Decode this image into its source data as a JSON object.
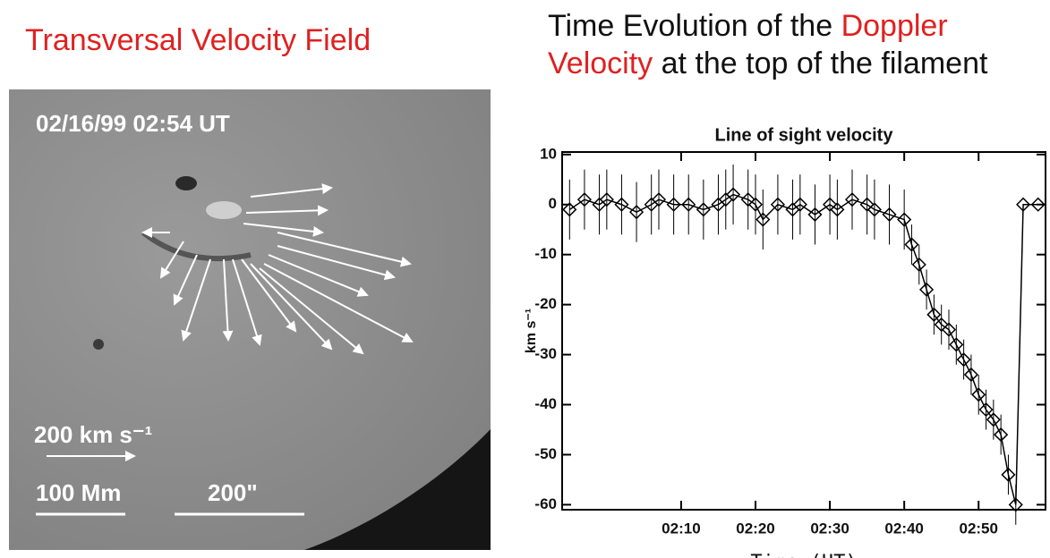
{
  "left_panel": {
    "title": "Transversal Velocity Field",
    "timestamp": "02/16/99 02:54 UT",
    "velocity_scale": "200 km s⁻¹",
    "length_scale": "100 Mm",
    "angle_scale": "200\""
  },
  "right_title": [
    "Time Evolution of the",
    "Doppler Velocity",
    "at the top of the filament"
  ],
  "chart_data": {
    "type": "line",
    "title": "Line of sight velocity",
    "xlabel": "Time (UT)",
    "ylabel": "km s⁻¹",
    "x": [
      "01:55",
      "01:57",
      "01:59",
      "02:00",
      "02:02",
      "02:04",
      "02:06",
      "02:07",
      "02:09",
      "02:11",
      "02:13",
      "02:15",
      "02:16",
      "02:17",
      "02:19",
      "02:20",
      "02:21",
      "02:23",
      "02:25",
      "02:26",
      "02:28",
      "02:30",
      "02:31",
      "02:33",
      "02:35",
      "02:36",
      "02:38",
      "02:40",
      "02:41",
      "02:42",
      "02:43",
      "02:44",
      "02:45",
      "02:46",
      "02:47",
      "02:48",
      "02:49",
      "02:50",
      "02:51",
      "02:52",
      "02:53",
      "02:54",
      "02:55",
      "02:56",
      "02:58"
    ],
    "series": [
      {
        "color": "#000000",
        "values": [
          -1,
          1,
          0,
          1,
          0,
          -1.5,
          0,
          1,
          0,
          0,
          -1,
          0,
          1,
          2,
          1,
          0,
          -3,
          0,
          -1,
          0,
          -2,
          0,
          -1,
          1,
          0,
          -1,
          -2,
          -3,
          -8,
          -12,
          -17,
          -22,
          -24,
          -25,
          -28,
          -31,
          -34,
          -38,
          -41,
          -43,
          -46,
          -54,
          -60,
          0,
          0
        ],
        "errors": [
          6,
          6,
          6,
          6,
          6,
          6,
          6,
          6,
          6,
          6,
          6,
          6,
          6,
          6,
          6,
          6,
          6,
          6,
          6,
          6,
          6,
          6,
          6,
          6,
          6,
          6,
          6,
          6,
          4,
          4,
          4,
          4,
          4,
          4,
          4,
          4,
          4,
          4,
          4,
          4,
          4,
          4,
          4,
          0,
          0
        ]
      }
    ],
    "xlim": [
      "01:54",
      "02:59"
    ],
    "xticks": [
      "02:10",
      "02:20",
      "02:30",
      "02:40",
      "02:50"
    ],
    "ylim": [
      -61,
      10.5
    ],
    "yticks": [
      10,
      0,
      -10,
      -20,
      -30,
      -40,
      -50,
      -60
    ]
  }
}
